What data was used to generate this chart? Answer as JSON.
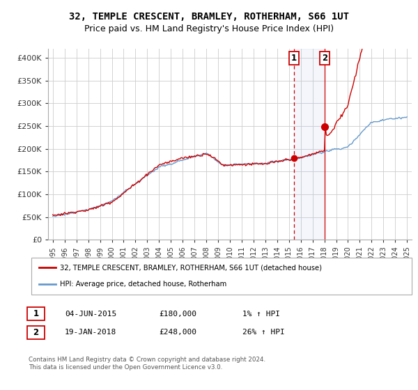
{
  "title": "32, TEMPLE CRESCENT, BRAMLEY, ROTHERHAM, S66 1UT",
  "subtitle": "Price paid vs. HM Land Registry's House Price Index (HPI)",
  "legend_line1": "32, TEMPLE CRESCENT, BRAMLEY, ROTHERHAM, S66 1UT (detached house)",
  "legend_line2": "HPI: Average price, detached house, Rotherham",
  "annotation1_label": "1",
  "annotation1_date": "04-JUN-2015",
  "annotation1_price": "£180,000",
  "annotation1_hpi": "1% ↑ HPI",
  "annotation1_year": 2015.42,
  "annotation1_value": 180000,
  "annotation2_label": "2",
  "annotation2_date": "19-JAN-2018",
  "annotation2_price": "£248,000",
  "annotation2_hpi": "26% ↑ HPI",
  "annotation2_year": 2018.05,
  "annotation2_value": 248000,
  "hpi_color": "#6699cc",
  "price_color": "#cc0000",
  "background_color": "#ffffff",
  "grid_color": "#cccccc",
  "footer": "Contains HM Land Registry data © Crown copyright and database right 2024.\nThis data is licensed under the Open Government Licence v3.0.",
  "ylim": [
    0,
    420000
  ],
  "yticks": [
    0,
    50000,
    100000,
    150000,
    200000,
    250000,
    300000,
    350000,
    400000
  ],
  "ytick_labels": [
    "£0",
    "£50K",
    "£100K",
    "£150K",
    "£200K",
    "£250K",
    "£300K",
    "£350K",
    "£400K"
  ]
}
